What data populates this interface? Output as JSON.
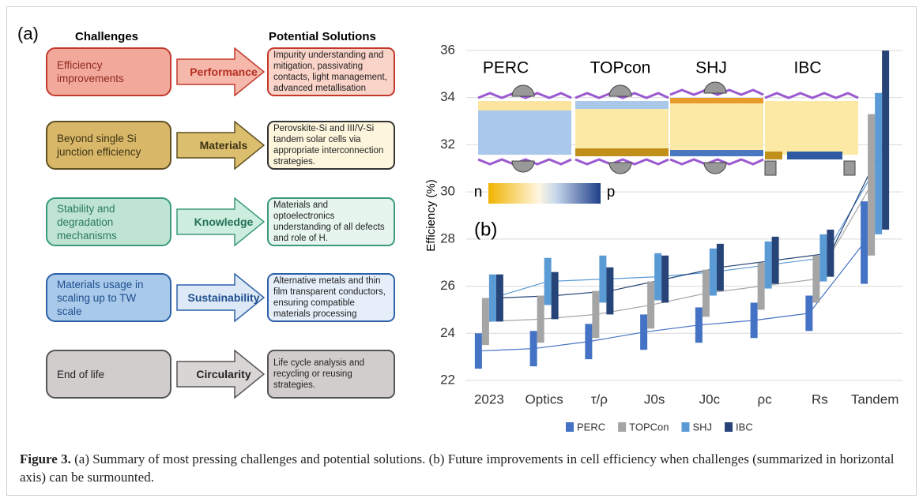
{
  "panel_a": {
    "label": "(a)",
    "col_headers": [
      "Challenges",
      "Potential Solutions"
    ],
    "rows": [
      {
        "challenge": "Efficiency improvements",
        "category": "Performance",
        "solution": "Impurity understanding and mitigation, passivating contacts, light management, advanced metallisation"
      },
      {
        "challenge": "Beyond single Si junction efficiency",
        "category": "Materials",
        "solution": "Perovskite-Si and III/V-Si tandem solar cells via appropriate interconnection strategies."
      },
      {
        "challenge": "Stability and degradation mechanisms",
        "category": "Knowledge",
        "solution": "Materials and optoelectronics understanding of all defects and role of H."
      },
      {
        "challenge": "Materials usage in scaling up to TW scale",
        "category": "Sustainability",
        "solution": "Alternative metals  and thin film transparent conductors, ensuring compatible materials processing"
      },
      {
        "challenge": "End of life",
        "category": "Circularity",
        "solution": "Life cycle analysis and recycling or reusing strategies."
      }
    ]
  },
  "chart_data": {
    "type": "floating_bar",
    "annotation": "(b)",
    "ylabel": "Efficiency (%)",
    "inset_labels": [
      "PERC",
      "TOPcon",
      "SHJ",
      "IBC"
    ],
    "gradient_labels": [
      "n",
      "p"
    ],
    "categories": [
      "2023",
      "Optics",
      "τ/ρ",
      "J0s",
      "J0c",
      "ρc",
      "Rs",
      "Tandem"
    ],
    "series": [
      {
        "name": "PERC",
        "color": "#4472c4",
        "low": [
          22.5,
          22.6,
          22.9,
          23.3,
          23.6,
          23.8,
          24.1,
          26.1
        ],
        "high": [
          24.0,
          24.1,
          24.4,
          24.8,
          25.1,
          25.3,
          25.6,
          29.6
        ]
      },
      {
        "name": "TOPCon",
        "color": "#a5a5a5",
        "low": [
          23.5,
          23.6,
          23.8,
          24.2,
          24.7,
          25.0,
          25.3,
          27.3
        ],
        "high": [
          25.5,
          25.6,
          25.8,
          26.2,
          26.7,
          27.0,
          27.3,
          33.3
        ]
      },
      {
        "name": "SHJ",
        "color": "#5b9bd5",
        "low": [
          24.5,
          25.2,
          25.3,
          25.4,
          25.6,
          25.9,
          26.2,
          28.2
        ],
        "high": [
          26.5,
          27.2,
          27.3,
          27.4,
          27.6,
          27.9,
          28.2,
          34.2
        ]
      },
      {
        "name": "IBC",
        "color": "#264478",
        "low": [
          24.5,
          24.6,
          24.8,
          25.3,
          25.8,
          26.1,
          26.4,
          28.4
        ],
        "high": [
          26.5,
          26.6,
          26.8,
          27.3,
          27.8,
          28.1,
          28.4,
          36
        ]
      }
    ],
    "ylim": [
      22,
      36
    ],
    "yticks": [
      22,
      24,
      26,
      28,
      30,
      32,
      34,
      36
    ],
    "grid": true
  },
  "caption": {
    "label": "Figure 3.",
    "text": " (a) Summary of most pressing challenges and potential solutions. (b) Future improvements in cell efficiency when challenges (summarized in horizontal axis) can be surmounted."
  }
}
